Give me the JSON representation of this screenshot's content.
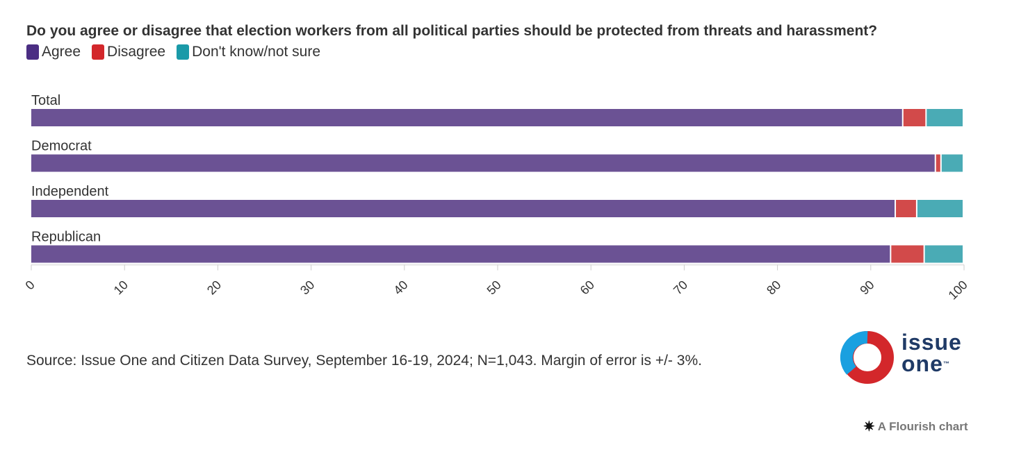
{
  "chart_data": {
    "type": "bar",
    "orientation": "horizontal",
    "stacked": true,
    "title": "Do you agree or disagree that election workers from all political parties should be protected from threats and harassment?",
    "categories": [
      "Total",
      "Democrat",
      "Independent",
      "Republican"
    ],
    "series": [
      {
        "name": "Agree",
        "color": "#6b5294",
        "values": [
          93.5,
          97,
          92.7,
          92.2
        ]
      },
      {
        "name": "Disagree",
        "color": "#d24a4a",
        "values": [
          2.5,
          0.6,
          2.3,
          3.6
        ]
      },
      {
        "name": "Don't know/not sure",
        "color": "#4aabb5",
        "values": [
          4,
          2.4,
          5,
          4.2
        ]
      }
    ],
    "xlim": [
      0,
      100
    ],
    "xticks": [
      "0",
      "10",
      "20",
      "30",
      "40",
      "50",
      "60",
      "70",
      "80",
      "90",
      "100"
    ],
    "legend_position": "top-left",
    "grid": false
  },
  "legend_colors": {
    "agree": "#4b2e83",
    "disagree": "#d3272b",
    "dontknow": "#1a9aa8"
  },
  "source": "Source: Issue One and Citizen Data Survey, September 16-19, 2024; N=1,043. Margin of error is +/- 3%.",
  "logo": {
    "line1": "issue",
    "line2": "one",
    "tm": "™"
  },
  "flourish": {
    "star": "✷",
    "label": "A Flourish chart"
  }
}
